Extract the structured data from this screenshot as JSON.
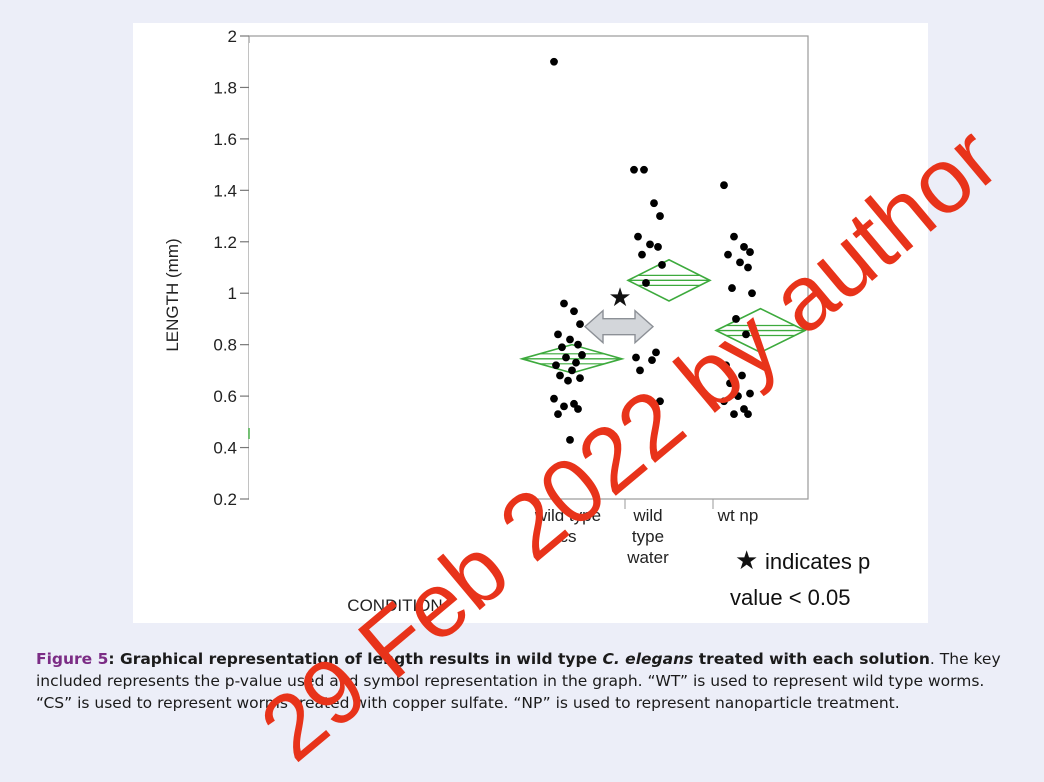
{
  "chart_data": {
    "type": "scatter",
    "ylabel": "LENGTH (mm)",
    "xlabel": "CONDITION",
    "ylim": [
      0.2,
      2.0
    ],
    "yticks": [
      "0.2",
      "0.4",
      "0.6",
      "0.8",
      "1",
      "1.2",
      "1.4",
      "1.6",
      "1.8",
      "2"
    ],
    "categories": [
      {
        "lines": [
          "wild type",
          "cs"
        ]
      },
      {
        "lines": [
          "wild",
          "type",
          "water"
        ]
      },
      {
        "lines": [
          "wt np"
        ]
      }
    ],
    "series": [
      {
        "category": "wild type cs",
        "mean": 0.745,
        "ci": [
          0.69,
          0.8
        ],
        "points": [
          1.9,
          0.96,
          0.93,
          0.88,
          0.84,
          0.82,
          0.8,
          0.79,
          0.76,
          0.75,
          0.73,
          0.72,
          0.7,
          0.68,
          0.67,
          0.66,
          0.59,
          0.57,
          0.56,
          0.55,
          0.53,
          0.43
        ]
      },
      {
        "category": "wild type water",
        "mean": 1.05,
        "ci": [
          0.97,
          1.13
        ],
        "points": [
          1.48,
          1.48,
          1.35,
          1.3,
          1.22,
          1.19,
          1.18,
          1.15,
          1.11,
          1.04,
          0.77,
          0.75,
          0.74,
          0.7,
          0.58
        ]
      },
      {
        "category": "wt np",
        "mean": 0.855,
        "ci": [
          0.77,
          0.94
        ],
        "points": [
          1.42,
          1.22,
          1.18,
          1.16,
          1.15,
          1.12,
          1.1,
          1.02,
          1.0,
          0.9,
          0.84,
          0.72,
          0.68,
          0.65,
          0.61,
          0.6,
          0.58,
          0.55,
          0.53,
          0.53
        ]
      }
    ],
    "legend": {
      "symbol": "★",
      "text_lines": [
        "indicates p",
        "value < 0.05"
      ]
    },
    "colors": {
      "diamond": "#3DAA3D",
      "points": "#000000",
      "arrow_fill": "#D3D6DA",
      "arrow_stroke": "#8C9096"
    }
  },
  "caption": {
    "label": "Figure 5",
    "sep": ": ",
    "bold_pre": "Graphical representation of length results in wild type ",
    "bold_italic": "C. elegans",
    "bold_post": " treated with each solution",
    "rest": ". The key included represents the p-value used and symbol representation in the graph. “WT” is used to represent wild type worms. “CS” is used to represent worms treated with copper sulfate. “NP” is used to represent nanoparticle treatment."
  },
  "watermark": "29 Feb 2022 by author"
}
